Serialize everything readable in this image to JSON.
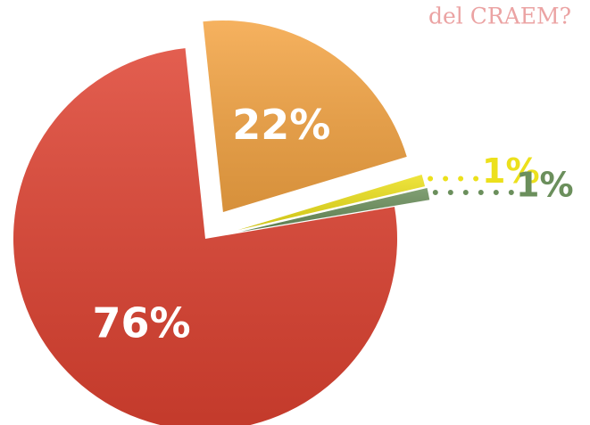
{
  "chart_data": {
    "type": "pie",
    "title": "del CRAEM?",
    "categories": [
      null,
      null,
      null,
      null
    ],
    "values": [
      22,
      1,
      1,
      76
    ],
    "value_labels": [
      "22%",
      "1%",
      "1%",
      "76%"
    ],
    "colors": [
      "#f4a443",
      "#ece01c",
      "#6b8f5c",
      "#de4231"
    ]
  }
}
